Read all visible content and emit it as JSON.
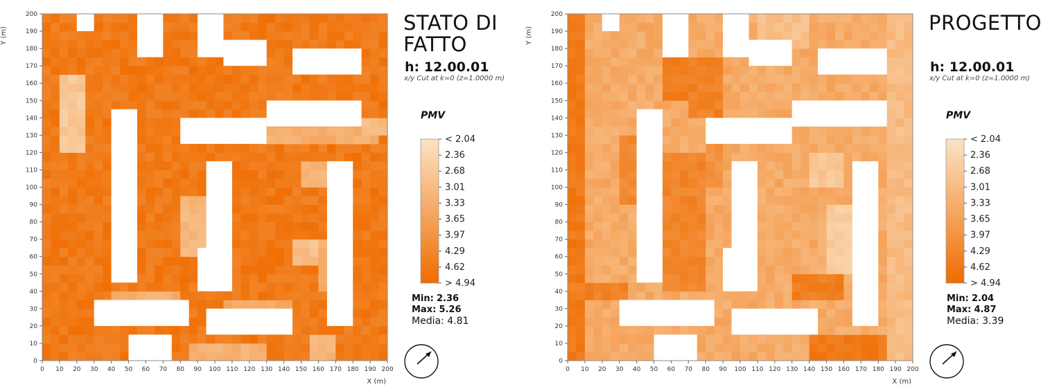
{
  "colors": {
    "scale_light": "#fbe3c4",
    "scale_dark": "#ef6c00",
    "building": "#ffffff"
  },
  "chart_data": [
    {
      "type": "heatmap",
      "title": "STATO DI\nFATTO",
      "timestamp": "h: 12.00.01",
      "cut_label": "x/y Cut at k=0 (z=1.0000 m)",
      "variable": "PMV",
      "xlabel": "X (m)",
      "ylabel": "Y (m)",
      "xlim": [
        0,
        200
      ],
      "ylim": [
        0,
        200
      ],
      "x_ticks": [
        0,
        10,
        20,
        30,
        40,
        50,
        60,
        70,
        80,
        90,
        100,
        110,
        120,
        130,
        140,
        150,
        160,
        170,
        180,
        190,
        200
      ],
      "y_ticks": [
        0,
        10,
        20,
        30,
        40,
        50,
        60,
        70,
        80,
        90,
        100,
        110,
        120,
        130,
        140,
        150,
        160,
        170,
        180,
        190,
        200
      ],
      "colorbar_labels": [
        "< 2.04",
        "2.36",
        "2.68",
        "3.01",
        "3.33",
        "3.65",
        "3.97",
        "4.29",
        "4.62",
        "> 4.94"
      ],
      "colorbar_range": [
        2.04,
        4.94
      ],
      "base_value": 4.6,
      "stats": {
        "min_label": "Min:",
        "min": "2.36",
        "max_label": "Max:",
        "max": "5.26",
        "mean_label": "Media:",
        "mean": "4.81"
      },
      "buildings": [
        {
          "x": [
            20,
            30
          ],
          "y": [
            190,
            200
          ]
        },
        {
          "x": [
            55,
            70
          ],
          "y": [
            175,
            200
          ]
        },
        {
          "x": [
            90,
            105
          ],
          "y": [
            175,
            200
          ]
        },
        {
          "x": [
            105,
            130
          ],
          "y": [
            170,
            185
          ]
        },
        {
          "x": [
            145,
            185
          ],
          "y": [
            165,
            180
          ]
        },
        {
          "x": [
            40,
            55
          ],
          "y": [
            45,
            145
          ]
        },
        {
          "x": [
            80,
            130
          ],
          "y": [
            125,
            140
          ]
        },
        {
          "x": [
            130,
            185
          ],
          "y": [
            135,
            150
          ]
        },
        {
          "x": [
            95,
            110
          ],
          "y": [
            40,
            115
          ]
        },
        {
          "x": [
            90,
            100
          ],
          "y": [
            40,
            65
          ]
        },
        {
          "x": [
            165,
            180
          ],
          "y": [
            20,
            115
          ]
        },
        {
          "x": [
            30,
            85
          ],
          "y": [
            20,
            35
          ]
        },
        {
          "x": [
            95,
            145
          ],
          "y": [
            15,
            30
          ]
        },
        {
          "x": [
            50,
            75
          ],
          "y": [
            0,
            15
          ]
        }
      ],
      "zones": [
        {
          "x": [
            10,
            25
          ],
          "y": [
            120,
            165
          ],
          "v": 2.7
        },
        {
          "x": [
            150,
            165
          ],
          "y": [
            100,
            115
          ],
          "v": 3.1
        },
        {
          "x": [
            80,
            95
          ],
          "y": [
            60,
            95
          ],
          "v": 3.1
        },
        {
          "x": [
            145,
            165
          ],
          "y": [
            55,
            70
          ],
          "v": 2.9
        },
        {
          "x": [
            130,
            195
          ],
          "y": [
            125,
            135
          ],
          "v": 3.3
        },
        {
          "x": [
            185,
            200
          ],
          "y": [
            130,
            140
          ],
          "v": 3.0
        },
        {
          "x": [
            85,
            130
          ],
          "y": [
            0,
            10
          ],
          "v": 3.2
        },
        {
          "x": [
            155,
            170
          ],
          "y": [
            0,
            15
          ],
          "v": 3.1
        },
        {
          "x": [
            105,
            145
          ],
          "y": [
            30,
            35
          ],
          "v": 3.5
        },
        {
          "x": [
            40,
            80
          ],
          "y": [
            35,
            40
          ],
          "v": 3.3
        },
        {
          "x": [
            160,
            165
          ],
          "y": [
            40,
            70
          ],
          "v": 3.3
        }
      ]
    },
    {
      "type": "heatmap",
      "title": "PROGETTO",
      "timestamp": "h: 12.00.01",
      "cut_label": "x/y Cut at k=0 (z=1.0000 m)",
      "variable": "PMV",
      "xlabel": "X (m)",
      "ylabel": "Y (m)",
      "xlim": [
        0,
        200
      ],
      "ylim": [
        0,
        200
      ],
      "x_ticks": [
        0,
        10,
        20,
        30,
        40,
        50,
        60,
        70,
        80,
        90,
        100,
        110,
        120,
        130,
        140,
        150,
        160,
        170,
        180,
        190,
        200
      ],
      "y_ticks": [
        0,
        10,
        20,
        30,
        40,
        50,
        60,
        70,
        80,
        90,
        100,
        110,
        120,
        130,
        140,
        150,
        160,
        170,
        180,
        190,
        200
      ],
      "colorbar_labels": [
        "< 2.04",
        "2.36",
        "2.68",
        "3.01",
        "3.33",
        "3.65",
        "3.97",
        "4.29",
        "4.62",
        "> 4.94"
      ],
      "colorbar_range": [
        2.04,
        4.94
      ],
      "base_value": 3.4,
      "stats": {
        "min_label": "Min:",
        "min": "2.04",
        "max_label": "Max:",
        "max": "4.87",
        "mean_label": "Media:",
        "mean": "3.39"
      },
      "buildings": [
        {
          "x": [
            20,
            30
          ],
          "y": [
            190,
            200
          ]
        },
        {
          "x": [
            55,
            70
          ],
          "y": [
            175,
            200
          ]
        },
        {
          "x": [
            90,
            105
          ],
          "y": [
            175,
            200
          ]
        },
        {
          "x": [
            105,
            130
          ],
          "y": [
            170,
            185
          ]
        },
        {
          "x": [
            145,
            185
          ],
          "y": [
            165,
            180
          ]
        },
        {
          "x": [
            40,
            55
          ],
          "y": [
            45,
            145
          ]
        },
        {
          "x": [
            80,
            130
          ],
          "y": [
            125,
            140
          ]
        },
        {
          "x": [
            130,
            185
          ],
          "y": [
            135,
            150
          ]
        },
        {
          "x": [
            95,
            110
          ],
          "y": [
            40,
            115
          ]
        },
        {
          "x": [
            90,
            100
          ],
          "y": [
            40,
            65
          ]
        },
        {
          "x": [
            165,
            180
          ],
          "y": [
            20,
            115
          ]
        },
        {
          "x": [
            30,
            85
          ],
          "y": [
            20,
            35
          ]
        },
        {
          "x": [
            95,
            145
          ],
          "y": [
            15,
            30
          ]
        },
        {
          "x": [
            50,
            75
          ],
          "y": [
            0,
            15
          ]
        }
      ],
      "zones": [
        {
          "x": [
            0,
            10
          ],
          "y": [
            0,
            200
          ],
          "v": 4.6
        },
        {
          "x": [
            55,
            75
          ],
          "y": [
            150,
            175
          ],
          "v": 4.5
        },
        {
          "x": [
            70,
            90
          ],
          "y": [
            140,
            175
          ],
          "v": 4.4
        },
        {
          "x": [
            30,
            40
          ],
          "y": [
            90,
            130
          ],
          "v": 4.2
        },
        {
          "x": [
            55,
            80
          ],
          "y": [
            40,
            120
          ],
          "v": 4.3
        },
        {
          "x": [
            130,
            160
          ],
          "y": [
            35,
            50
          ],
          "v": 4.5
        },
        {
          "x": [
            140,
            185
          ],
          "y": [
            0,
            15
          ],
          "v": 4.6
        },
        {
          "x": [
            110,
            140
          ],
          "y": [
            180,
            200
          ],
          "v": 2.9
        },
        {
          "x": [
            150,
            175
          ],
          "y": [
            50,
            90
          ],
          "v": 2.6
        },
        {
          "x": [
            140,
            160
          ],
          "y": [
            100,
            120
          ],
          "v": 2.7
        },
        {
          "x": [
            185,
            200
          ],
          "y": [
            0,
            200
          ],
          "v": 3.0
        },
        {
          "x": [
            80,
            90
          ],
          "y": [
            100,
            125
          ],
          "v": 4.0
        },
        {
          "x": [
            0,
            35
          ],
          "y": [
            35,
            45
          ],
          "v": 4.4
        }
      ]
    }
  ]
}
